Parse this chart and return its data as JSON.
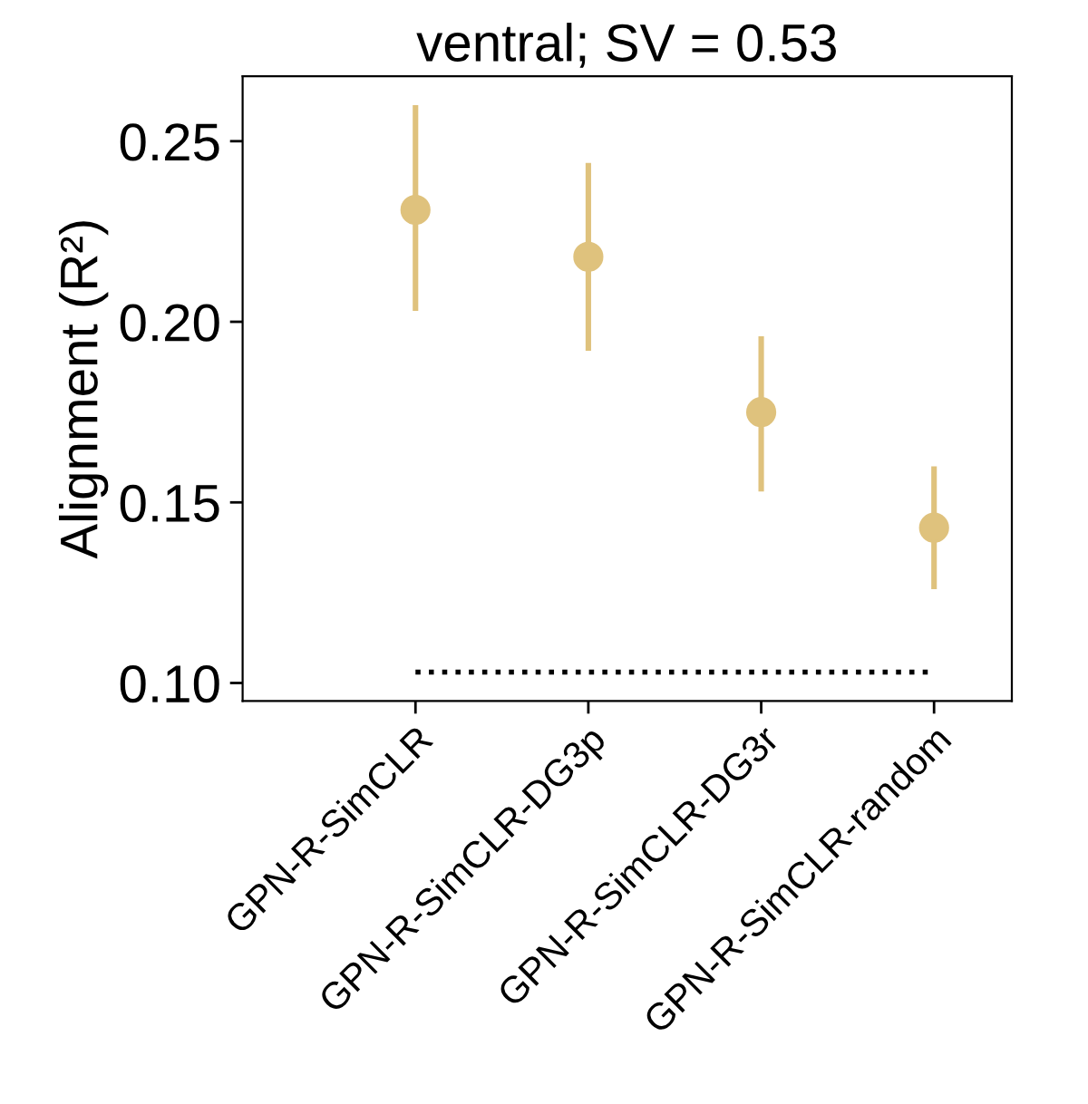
{
  "chart_data": {
    "type": "scatter",
    "title": "ventral; SV = 0.53",
    "ylabel": "Alignment (R²)",
    "categories": [
      "GPN-R-SimCLR",
      "GPN-R-SimCLR-DG3p",
      "GPN-R-SimCLR-DG3r",
      "GPN-R-SimCLR-random"
    ],
    "series": [
      {
        "color": "#dfc27d",
        "values": [
          0.231,
          0.218,
          0.175,
          0.143
        ],
        "errors": [
          [
            0.203,
            0.26
          ],
          [
            0.192,
            0.244
          ],
          [
            0.153,
            0.196
          ],
          [
            0.126,
            0.16
          ]
        ]
      }
    ],
    "ref_lines": [
      {
        "axis": "y",
        "value": 0.103,
        "color": "#000000",
        "line_style": "dotted"
      }
    ],
    "ylim": [
      0.095,
      0.268
    ],
    "yticks": [
      {
        "value": 0.1,
        "label": "0.10"
      },
      0.15,
      {
        "value": 0.2,
        "label": "0.20"
      },
      0.25
    ],
    "marker": "circle",
    "grid": false,
    "legend": false
  }
}
